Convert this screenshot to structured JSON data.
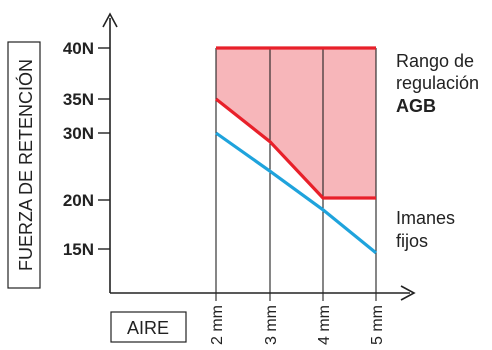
{
  "chart_data": {
    "type": "line",
    "ylabel": "FUERZA DE RETENCIÓN",
    "xlabel": "AIRE",
    "x": [
      "2 mm",
      "3 mm",
      "4 mm",
      "5 mm"
    ],
    "yticks": [
      15,
      20,
      30,
      35,
      40
    ],
    "ytick_labels": [
      "15N",
      "20N",
      "30N",
      "35N",
      "40N"
    ],
    "series": [
      {
        "name_lines": [
          "Rango de",
          "regulación",
          "AGB"
        ],
        "color": "#e8202a",
        "values": [
          35,
          28.7,
          20.3,
          20.3
        ]
      },
      {
        "name_lines": [
          "Imanes",
          "fijos"
        ],
        "color": "#1fa3dc",
        "values": [
          30,
          24.3,
          19,
          14.6
        ]
      }
    ],
    "band": {
      "upper": [
        40,
        40,
        40,
        40
      ],
      "lower_series": 0,
      "color": "#f7b6ba"
    },
    "grid": "vertical"
  }
}
